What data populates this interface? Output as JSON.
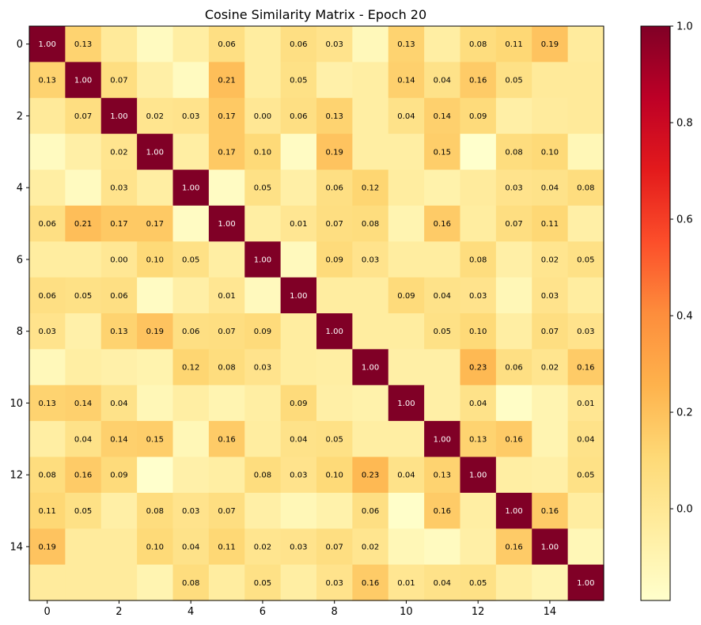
{
  "chart_data": {
    "type": "heatmap",
    "title": "Cosine Similarity Matrix - Epoch 20",
    "xlabel": "",
    "ylabel": "",
    "x_ticks": [
      0,
      2,
      4,
      6,
      8,
      10,
      12,
      14
    ],
    "y_ticks": [
      0,
      2,
      4,
      6,
      8,
      10,
      12,
      14
    ],
    "size": 16,
    "colormap": "YlOrRd",
    "vmin": -0.19,
    "vmax": 1.0,
    "colorbar_ticks": [
      1.0,
      0.8,
      0.6,
      0.4,
      0.2,
      0.0
    ],
    "colorbar_tick_labels": [
      "1.0",
      "0.8",
      "0.6",
      "0.4",
      "0.2",
      "0.0"
    ],
    "label_threshold": 0.0,
    "values": [
      [
        1.0,
        0.13,
        -0.02,
        -0.15,
        -0.05,
        0.06,
        -0.04,
        0.06,
        0.03,
        -0.13,
        0.13,
        -0.05,
        0.08,
        0.11,
        0.19,
        -0.03
      ],
      [
        0.13,
        1.0,
        0.07,
        -0.06,
        -0.15,
        0.21,
        -0.04,
        0.05,
        -0.07,
        -0.05,
        0.14,
        0.04,
        0.16,
        0.05,
        -0.02,
        -0.02
      ],
      [
        -0.02,
        0.07,
        1.0,
        0.02,
        0.03,
        0.17,
        0.0,
        0.06,
        0.13,
        -0.05,
        0.04,
        0.14,
        0.09,
        -0.06,
        -0.03,
        -0.02
      ],
      [
        -0.15,
        -0.06,
        0.02,
        1.0,
        -0.05,
        0.17,
        0.1,
        -0.16,
        0.19,
        -0.05,
        -0.05,
        0.15,
        -0.19,
        0.08,
        0.1,
        -0.12
      ],
      [
        -0.05,
        -0.15,
        0.03,
        -0.05,
        1.0,
        -0.16,
        0.05,
        -0.06,
        0.06,
        0.12,
        -0.04,
        -0.08,
        -0.03,
        0.03,
        0.04,
        0.08
      ],
      [
        0.06,
        0.21,
        0.17,
        0.17,
        -0.16,
        1.0,
        -0.05,
        0.01,
        0.07,
        0.08,
        -0.1,
        0.16,
        -0.04,
        0.07,
        0.11,
        -0.06
      ],
      [
        -0.04,
        -0.04,
        0.0,
        0.1,
        0.05,
        -0.05,
        1.0,
        -0.14,
        0.09,
        0.03,
        -0.04,
        -0.04,
        0.08,
        -0.06,
        0.02,
        0.05
      ],
      [
        0.06,
        0.05,
        0.06,
        -0.16,
        -0.06,
        0.01,
        -0.14,
        1.0,
        -0.04,
        -0.04,
        0.09,
        0.04,
        0.03,
        -0.12,
        0.03,
        -0.04
      ],
      [
        0.03,
        -0.07,
        0.13,
        0.19,
        0.06,
        0.07,
        0.09,
        -0.04,
        1.0,
        -0.04,
        -0.04,
        0.05,
        0.1,
        -0.05,
        0.07,
        0.03
      ],
      [
        -0.13,
        -0.05,
        -0.07,
        -0.09,
        0.12,
        0.08,
        0.03,
        -0.04,
        -0.05,
        1.0,
        -0.06,
        -0.06,
        0.23,
        0.06,
        0.02,
        0.16
      ],
      [
        0.13,
        0.14,
        0.04,
        -0.12,
        -0.05,
        -0.1,
        -0.05,
        0.09,
        -0.06,
        -0.08,
        1.0,
        -0.06,
        0.04,
        -0.17,
        -0.1,
        0.01
      ],
      [
        -0.05,
        0.04,
        0.14,
        0.15,
        -0.12,
        0.16,
        -0.04,
        0.04,
        0.05,
        -0.05,
        -0.05,
        1.0,
        0.13,
        0.16,
        -0.1,
        0.04
      ],
      [
        0.08,
        0.16,
        0.09,
        -0.19,
        -0.07,
        -0.05,
        0.08,
        0.03,
        0.1,
        0.23,
        0.04,
        0.13,
        1.0,
        -0.05,
        -0.06,
        0.05
      ],
      [
        0.11,
        0.05,
        -0.06,
        0.08,
        0.03,
        0.07,
        -0.06,
        -0.12,
        -0.08,
        0.06,
        -0.18,
        0.16,
        -0.05,
        1.0,
        0.16,
        -0.04
      ],
      [
        0.19,
        -0.03,
        -0.03,
        0.1,
        0.04,
        0.11,
        0.02,
        0.03,
        0.07,
        0.02,
        -0.12,
        -0.15,
        -0.06,
        0.16,
        1.0,
        -0.12
      ],
      [
        -0.03,
        -0.03,
        -0.03,
        -0.1,
        0.08,
        -0.04,
        0.05,
        -0.05,
        0.03,
        0.16,
        0.01,
        0.04,
        0.05,
        -0.05,
        -0.1,
        1.0
      ]
    ]
  }
}
